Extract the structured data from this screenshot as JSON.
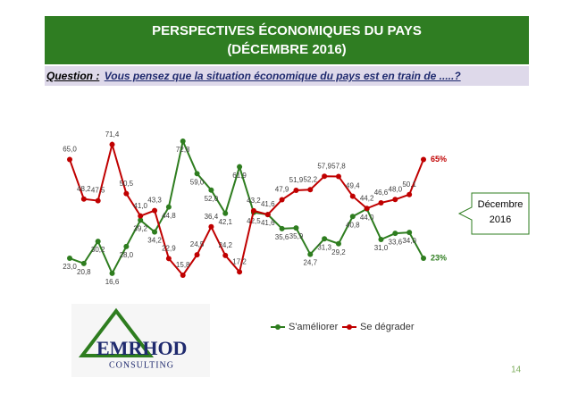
{
  "header": {
    "title_lines": [
      "PERSPECTIVES  ÉCONOMIQUES  DU PAYS",
      "(DÉCEMBRE  2016)"
    ]
  },
  "question": {
    "label": "Question :",
    "text": "Vous pensez que la situation économique du pays est en train de .....?"
  },
  "chart_data": {
    "type": "line",
    "series": [
      {
        "name": "S'améliorer",
        "color": "#2e7d1f",
        "values": [
          23.0,
          20.8,
          30.2,
          16.6,
          28.0,
          39.2,
          34.2,
          44.8,
          72.8,
          59.0,
          52.0,
          42.1,
          61.9,
          42.5,
          41.6,
          35.6,
          35.9,
          24.7,
          31.3,
          29.2,
          40.8,
          44.0,
          31.0,
          33.6,
          34.0,
          23
        ],
        "value_labels": [
          "23,0",
          "20,8",
          "30,2",
          "16,6",
          "28,0",
          "39,2",
          "34,2",
          "44,8",
          "72,8",
          "59,0",
          "52,0",
          "42,1",
          "61,9",
          "42,5",
          "41,6",
          "35,6",
          "35,9",
          "24,7",
          "31,3",
          "29,2",
          "40,8",
          "44,0",
          "31,0",
          "33,6",
          "34,0",
          "23%"
        ]
      },
      {
        "name": "Se dégrader",
        "color": "#c00000",
        "values": [
          65.0,
          48.2,
          47.5,
          71.4,
          50.5,
          41.0,
          43.3,
          22.9,
          15.8,
          24.5,
          36.4,
          24.2,
          17.2,
          43.2,
          41.6,
          47.9,
          51.9,
          52.2,
          57.9,
          57.8,
          49.4,
          44.2,
          46.6,
          48.0,
          50.1,
          65
        ],
        "value_labels": [
          "65,0",
          "48,2",
          "47,5",
          "71,4",
          "50,5",
          "41,0",
          "43,3",
          "22,9",
          "15,8",
          "24,5",
          "36,4",
          "24,2",
          "17,2",
          "43,2",
          "41,6",
          "47,9",
          "51,9",
          "52,2",
          "57,9",
          "57,8",
          "49,4",
          "44,2",
          "46,6",
          "48,0",
          "50,1",
          "65%"
        ]
      }
    ]
  },
  "callout": {
    "lines": [
      "Décembre",
      "2016"
    ]
  },
  "logo": {
    "name": "EMRHOD",
    "sub": "CONSULTING"
  },
  "page_number": "14"
}
